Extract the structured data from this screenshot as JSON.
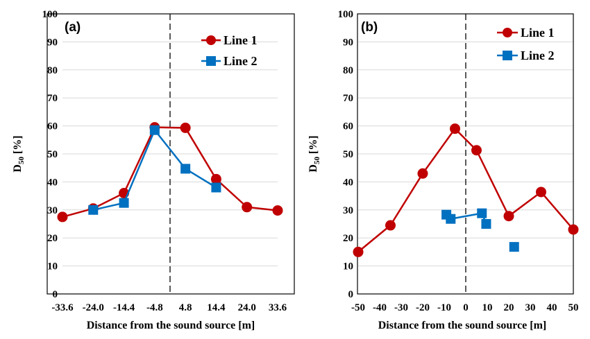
{
  "chart_data": [
    {
      "type": "line",
      "panel_label": "(a)",
      "xlabel": "Distance from the sound source [m]",
      "ylabel_main": "D",
      "ylabel_sub": "50",
      "ylabel_unit": "[%]",
      "x_tick_labels": [
        "-33.6",
        "-24.0",
        "-14.4",
        "-4.8",
        "4.8",
        "14.4",
        "24.0",
        "33.6"
      ],
      "y_ticks": [
        0,
        10,
        20,
        30,
        40,
        50,
        60,
        70,
        80,
        90,
        100
      ],
      "ylim": [
        0,
        100
      ],
      "x_scale": "categorical",
      "source_marker_between": [
        "-4.8",
        "4.8"
      ],
      "grid": "horizontal",
      "legend_position": "top-right",
      "series": [
        {
          "name": "Line 1",
          "color": "#c00000",
          "marker": "circle",
          "x": [
            "-33.6",
            "-24.0",
            "-14.4",
            "-4.8",
            "4.8",
            "14.4",
            "24.0",
            "33.6"
          ],
          "values": [
            27.5,
            30.5,
            36,
            59.5,
            59.3,
            41,
            31,
            29.8
          ]
        },
        {
          "name": "Line 2",
          "color": "#0070c0",
          "marker": "square",
          "x": [
            "-24.0",
            "-14.4",
            "-4.8",
            "4.8",
            "14.4"
          ],
          "values": [
            30,
            32.5,
            58.5,
            44.7,
            38
          ]
        }
      ]
    },
    {
      "type": "line",
      "panel_label": "(b)",
      "xlabel": "Distance from the sound source [m]",
      "ylabel_main": "D",
      "ylabel_sub": "50",
      "ylabel_unit": "[%]",
      "x_ticks": [
        -50,
        -40,
        -30,
        -20,
        -10,
        0,
        10,
        20,
        30,
        40,
        50
      ],
      "xlim": [
        -50,
        50
      ],
      "y_ticks": [
        0,
        10,
        20,
        30,
        40,
        50,
        60,
        70,
        80,
        90,
        100
      ],
      "ylim": [
        0,
        100
      ],
      "x_scale": "linear",
      "source_marker_at": 0,
      "grid": "horizontal",
      "legend_position": "top-right",
      "series": [
        {
          "name": "Line 1",
          "color": "#c00000",
          "marker": "circle",
          "segments": [
            {
              "x": [
                -50,
                -35,
                -20,
                -5,
                5,
                20,
                35,
                50
              ],
              "y": [
                15,
                24.5,
                43,
                59,
                51.3,
                27.8,
                36.4,
                23
              ]
            }
          ]
        },
        {
          "name": "Line 2",
          "color": "#0070c0",
          "marker": "square",
          "segments": [
            {
              "x": [
                -9
              ],
              "y": [
                28.3
              ]
            },
            {
              "x": [
                -7,
                7.5,
                9.5
              ],
              "y": [
                26.8,
                28.8,
                25
              ]
            },
            {
              "x": [
                22.5
              ],
              "y": [
                16.8
              ]
            }
          ]
        }
      ]
    }
  ]
}
